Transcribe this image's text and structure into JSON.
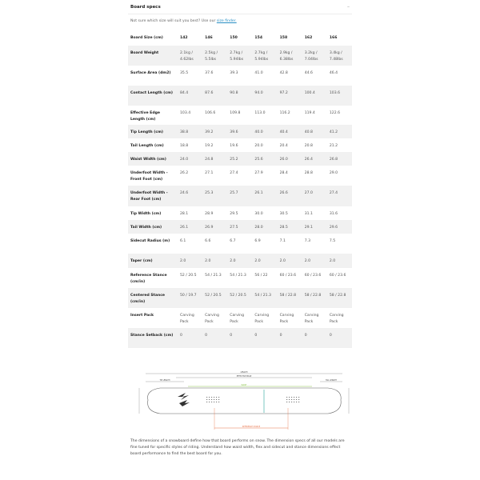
{
  "section": {
    "title": "Board specs",
    "collapse_icon": "minus-icon",
    "intro_text": "Not sure which size will suit you best? Use our ",
    "intro_link": "size finder."
  },
  "table": {
    "header": [
      "Board Size (cm)",
      "142",
      "146",
      "150",
      "154",
      "158",
      "162",
      "166"
    ],
    "rows": [
      [
        "Board Weight",
        "2.1kg / 4.62lbs",
        "2.5kg / 5.5lbs",
        "2.7kg / 5.94lbs",
        "2.7kg / 5.94lbs",
        "2.9kg / 6.38lbs",
        "3.2kg / 7.04lbs",
        "3.4kg / 7.48lbs"
      ],
      [
        "Surface Area (dm2)",
        "35.5",
        "37.6",
        "39.3",
        "41.0",
        "42.8",
        "44.6",
        "46.4"
      ],
      [
        "Contact Length (cm)",
        "84.4",
        "87.6",
        "90.8",
        "94.0",
        "97.2",
        "100.4",
        "103.6"
      ],
      [
        "Effective Edge Length (cm)",
        "103.4",
        "106.6",
        "109.8",
        "113.0",
        "116.2",
        "119.4",
        "122.6"
      ],
      [
        "Tip Length (cm)",
        "38.8",
        "39.2",
        "39.6",
        "40.0",
        "40.4",
        "40.8",
        "41.2"
      ],
      [
        "Tail Length (cm)",
        "18.8",
        "19.2",
        "19.6",
        "20.0",
        "20.4",
        "20.8",
        "21.2"
      ],
      [
        "Waist Width (cm)",
        "24.0",
        "24.8",
        "25.2",
        "25.6",
        "26.0",
        "26.4",
        "26.8"
      ],
      [
        "Underfoot Width - Front Foot (cm)",
        "26.2",
        "27.1",
        "27.4",
        "27.9",
        "28.4",
        "28.8",
        "29.0"
      ],
      [
        "Underfoot Width - Rear Foot (cm)",
        "24.6",
        "25.3",
        "25.7",
        "26.1",
        "26.6",
        "27.0",
        "27.4"
      ],
      [
        "Tip Width (cm)",
        "28.1",
        "28.9",
        "29.5",
        "30.0",
        "30.5",
        "31.1",
        "31.6"
      ],
      [
        "Tail Width (cm)",
        "26.1",
        "26.9",
        "27.5",
        "28.0",
        "28.5",
        "29.1",
        "29.6"
      ],
      [
        "Sidecut Radius (m)",
        "6.1",
        "6.6",
        "6.7",
        "6.9",
        "7.1",
        "7.3",
        "7.5"
      ],
      [
        "Taper (cm)",
        "2.0",
        "2.0",
        "2.0",
        "2.0",
        "2.0",
        "2.0",
        "2.0"
      ],
      [
        "Reference Stance (cm/in)",
        "52 / 20.5",
        "54 / 21.3",
        "54 / 21.3",
        "56 / 22",
        "60 / 23.6",
        "60 / 23.6",
        "60 / 23.6"
      ],
      [
        "Centered Stance (cm/in)",
        "50 / 19.7",
        "52 / 20.5",
        "52 / 20.5",
        "54 / 21.3",
        "58 / 22.8",
        "58 / 22.8",
        "58 / 22.8"
      ],
      [
        "Insert Pack",
        "Carving Pack",
        "Carving Pack",
        "Carving Pack",
        "Carving Pack",
        "Carving Pack",
        "Carving Pack",
        "Carving Pack"
      ],
      [
        "Stance Setback (cm)",
        "0",
        "0",
        "0",
        "0",
        "0",
        "0",
        "0"
      ]
    ]
  },
  "diagram": {
    "length": "LENGTH",
    "effective_edge": "EFFECTIVE EDGE",
    "tip_length": "TIP LENGTH",
    "tail_length": "TAIL LENGTH",
    "waist": "WAIST",
    "reference_stance": "REFERENCE STANCE",
    "colors": {
      "green": "#8bc34a",
      "teal": "#26a69a",
      "orange": "#e8734a"
    }
  },
  "description": "The dimensions of a snowboard define how that board performs on snow. The dimension specs of all our models are fine tuned for specific styles of riding. Understand how waist width, flex and sidecut and stance dimensions effect board performance to find the best board for you."
}
